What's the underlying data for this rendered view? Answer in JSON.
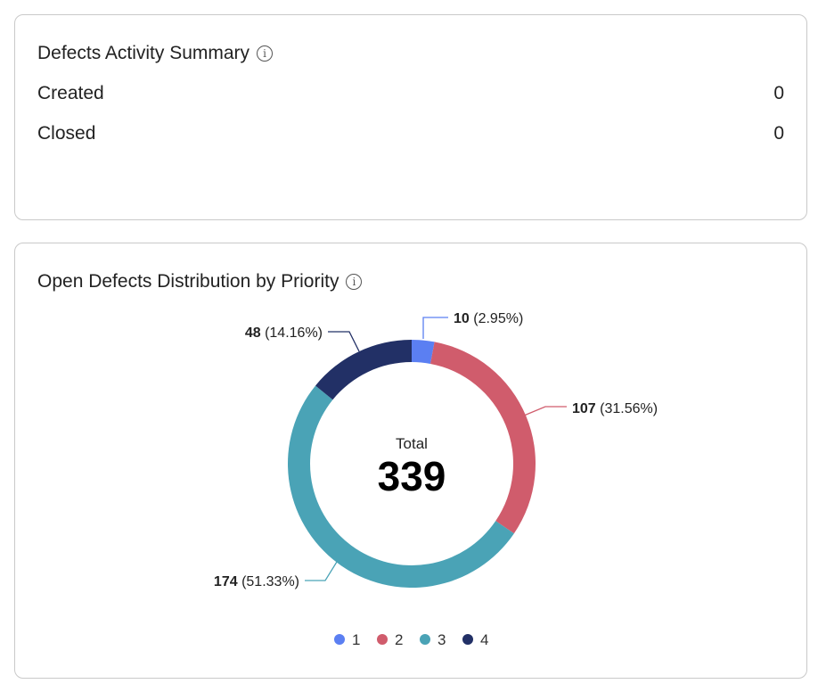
{
  "summary": {
    "title": "Defects Activity Summary",
    "info_icon": "info-icon",
    "rows": [
      {
        "label": "Created",
        "value": "0"
      },
      {
        "label": "Closed",
        "value": "0"
      }
    ]
  },
  "distribution": {
    "title": "Open Defects Distribution by Priority",
    "info_icon": "info-icon"
  },
  "chart_data": {
    "type": "pie",
    "variant": "donut",
    "center_label": "Total",
    "center_value": "339",
    "categories": [
      "1",
      "2",
      "3",
      "4"
    ],
    "values": [
      10,
      107,
      174,
      48
    ],
    "labels": [
      "(2.95%)",
      "(31.56%)",
      "(51.33%)",
      "(14.16%)"
    ],
    "colors": [
      "#5b7ff2",
      "#d05c6c",
      "#4aa3b6",
      "#223066"
    ],
    "legend": "bottom"
  }
}
